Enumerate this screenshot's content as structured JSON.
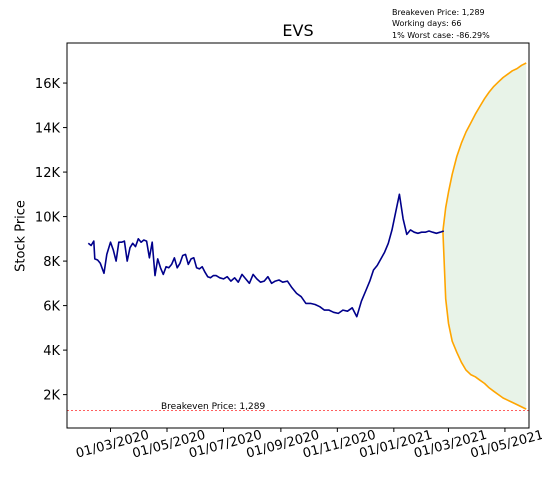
{
  "chart_data": {
    "type": "line",
    "title": "EVS",
    "xlabel": "",
    "ylabel": "Stock Price",
    "ylim": [
      500,
      17800
    ],
    "xlim": [
      "2020-01-14",
      "2021-05-27"
    ],
    "grid": false,
    "x_ticks": [
      "01/03/2020",
      "01/05/2020",
      "01/07/2020",
      "01/09/2020",
      "01/11/2020",
      "01/01/2021",
      "01/03/2021",
      "01/05/2021"
    ],
    "y_ticks": [
      "2K",
      "4K",
      "6K",
      "8K",
      "10K",
      "12K",
      "14K",
      "16K"
    ],
    "y_tick_values": [
      2000,
      4000,
      6000,
      8000,
      10000,
      12000,
      14000,
      16000
    ],
    "annotations": {
      "breakeven_label": "Breakeven Price: 1,289",
      "info_lines": [
        "Breakeven Price: 1,289",
        "Working days: 66",
        "1% Worst case: -86.29%"
      ]
    },
    "breakeven": 1289,
    "colors": {
      "history": "#00008b",
      "bounds": "#ffa500",
      "fill": "#e5f2e5",
      "breakeven_line": "#ff0000"
    },
    "series": [
      {
        "values_role": "history",
        "x": [
          "2020-02-06",
          "2020-02-09",
          "2020-02-12",
          "2020-02-13",
          "2020-02-16",
          "2020-02-19",
          "2020-02-23",
          "2020-02-26",
          "2020-03-01",
          "2020-03-04",
          "2020-03-07",
          "2020-03-10",
          "2020-03-13",
          "2020-03-16",
          "2020-03-19",
          "2020-03-22",
          "2020-03-25",
          "2020-03-28",
          "2020-03-31",
          "2020-04-03",
          "2020-04-06",
          "2020-04-09",
          "2020-04-12",
          "2020-04-15",
          "2020-04-18",
          "2020-04-21",
          "2020-04-24",
          "2020-04-27",
          "2020-04-30",
          "2020-05-03",
          "2020-05-06",
          "2020-05-09",
          "2020-05-12",
          "2020-05-15",
          "2020-05-18",
          "2020-05-21",
          "2020-05-24",
          "2020-05-27",
          "2020-05-30",
          "2020-06-02",
          "2020-06-05",
          "2020-06-08",
          "2020-06-11",
          "2020-06-14",
          "2020-06-17",
          "2020-06-20",
          "2020-06-23",
          "2020-06-27",
          "2020-07-01",
          "2020-07-05",
          "2020-07-09",
          "2020-07-13",
          "2020-07-17",
          "2020-07-21",
          "2020-07-25",
          "2020-07-29",
          "2020-08-02",
          "2020-08-06",
          "2020-08-10",
          "2020-08-14",
          "2020-08-18",
          "2020-08-22",
          "2020-08-26",
          "2020-08-30",
          "2020-09-03",
          "2020-09-08",
          "2020-09-13",
          "2020-09-18",
          "2020-09-23",
          "2020-09-28",
          "2020-10-03",
          "2020-10-08",
          "2020-10-13",
          "2020-10-18",
          "2020-10-23",
          "2020-10-28",
          "2020-11-02",
          "2020-11-07",
          "2020-11-12",
          "2020-11-17",
          "2020-11-22",
          "2020-11-27",
          "2020-12-02",
          "2020-12-06",
          "2020-12-10",
          "2020-12-14",
          "2020-12-18",
          "2020-12-22",
          "2020-12-26",
          "2020-12-30",
          "2021-01-03",
          "2021-01-07",
          "2021-01-11",
          "2021-01-15",
          "2021-01-19",
          "2021-01-23",
          "2021-01-27",
          "2021-01-31",
          "2021-02-04",
          "2021-02-08",
          "2021-02-12",
          "2021-02-16",
          "2021-02-20",
          "2021-02-24"
        ],
        "values": [
          8800,
          8700,
          8900,
          8100,
          8050,
          7900,
          7450,
          8300,
          8850,
          8500,
          8000,
          8850,
          8850,
          8900,
          8000,
          8600,
          8800,
          8650,
          9000,
          8850,
          8950,
          8900,
          8150,
          8850,
          7350,
          8100,
          7700,
          7400,
          7750,
          7700,
          7850,
          8150,
          7700,
          7900,
          8250,
          8300,
          7850,
          8100,
          8150,
          7700,
          7650,
          7750,
          7500,
          7300,
          7250,
          7350,
          7350,
          7250,
          7200,
          7300,
          7100,
          7250,
          7050,
          7400,
          7200,
          7000,
          7400,
          7200,
          7050,
          7100,
          7300,
          7000,
          7100,
          7150,
          7050,
          7100,
          6800,
          6550,
          6400,
          6100,
          6100,
          6050,
          5950,
          5800,
          5800,
          5700,
          5650,
          5800,
          5750,
          5900,
          5500,
          6200,
          6700,
          7100,
          7600,
          7800,
          8100,
          8400,
          8800,
          9400,
          10200,
          11000,
          9900,
          9200,
          9400,
          9300,
          9250,
          9300,
          9300,
          9350,
          9300,
          9250,
          9300,
          9350
        ]
      },
      {
        "values_role": "upper_bound",
        "x": [
          "2021-02-23",
          "2021-02-26",
          "2021-03-01",
          "2021-03-05",
          "2021-03-10",
          "2021-03-15",
          "2021-03-20",
          "2021-03-25",
          "2021-03-30",
          "2021-04-04",
          "2021-04-09",
          "2021-04-14",
          "2021-04-19",
          "2021-04-24",
          "2021-04-29",
          "2021-05-04",
          "2021-05-09",
          "2021-05-14",
          "2021-05-19",
          "2021-05-24"
        ],
        "values": [
          9350,
          10400,
          11100,
          11900,
          12700,
          13300,
          13800,
          14200,
          14600,
          14950,
          15300,
          15600,
          15850,
          16050,
          16250,
          16400,
          16550,
          16650,
          16800,
          16900
        ]
      },
      {
        "values_role": "lower_bound",
        "x": [
          "2021-02-23",
          "2021-02-26",
          "2021-03-01",
          "2021-03-05",
          "2021-03-10",
          "2021-03-15",
          "2021-03-20",
          "2021-03-25",
          "2021-03-30",
          "2021-04-04",
          "2021-04-09",
          "2021-04-14",
          "2021-04-19",
          "2021-04-24",
          "2021-04-29",
          "2021-05-04",
          "2021-05-09",
          "2021-05-14",
          "2021-05-19",
          "2021-05-24"
        ],
        "values": [
          9350,
          6300,
          5200,
          4400,
          3900,
          3450,
          3100,
          2900,
          2800,
          2650,
          2500,
          2300,
          2150,
          2000,
          1850,
          1750,
          1650,
          1550,
          1450,
          1350
        ]
      }
    ]
  }
}
